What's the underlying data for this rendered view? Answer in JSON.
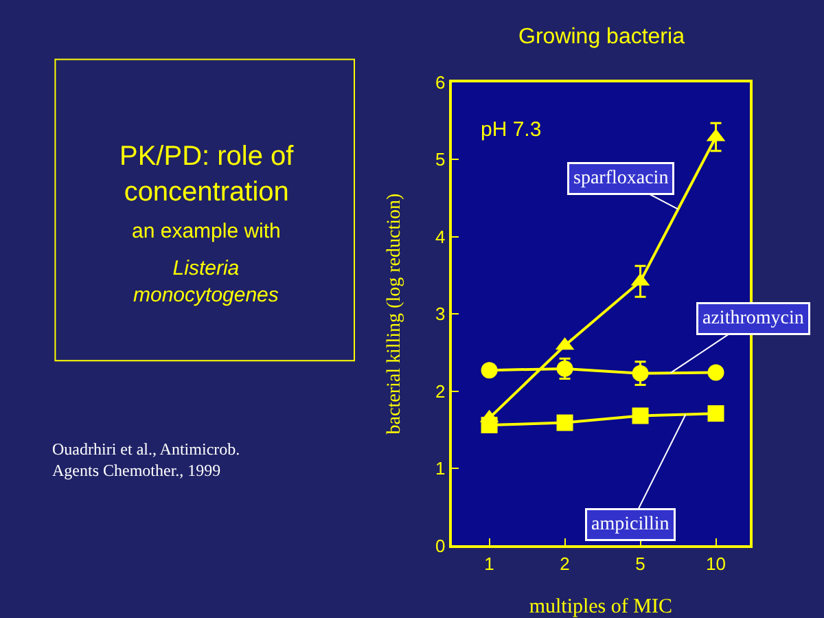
{
  "chart_data": {
    "type": "line",
    "title": "Growing bacteria",
    "xlabel": "multiples of MIC",
    "ylabel": "bacterial killing (log reduction)",
    "categories": [
      "1",
      "2",
      "5",
      "10"
    ],
    "series": [
      {
        "name": "sparfloxacin",
        "color": "#ffff00",
        "marker": "triangle",
        "values": [
          1.65,
          2.59,
          3.42,
          5.29
        ],
        "errors": [
          null,
          null,
          0.2,
          0.18
        ]
      },
      {
        "name": "azithromycin",
        "color": "#ffff00",
        "marker": "circle",
        "values": [
          2.27,
          2.29,
          2.23,
          2.24
        ],
        "errors": [
          null,
          0.13,
          0.15,
          null
        ]
      },
      {
        "name": "ampicillin",
        "color": "#ffff00",
        "marker": "square",
        "values": [
          1.56,
          1.59,
          1.68,
          1.71
        ]
      }
    ],
    "ylim": [
      0,
      6
    ],
    "yticks": [
      0,
      1,
      2,
      3,
      4,
      5,
      6
    ],
    "grid": false,
    "legend": false,
    "line_style": "solid",
    "annotations": [
      "pH 7.3",
      "PK/PD: role of concentration",
      "an example with",
      "Listeria monocytogenes",
      "Ouadrhiri et al., Antimicrob. Agents Chemother., 1999"
    ]
  }
}
